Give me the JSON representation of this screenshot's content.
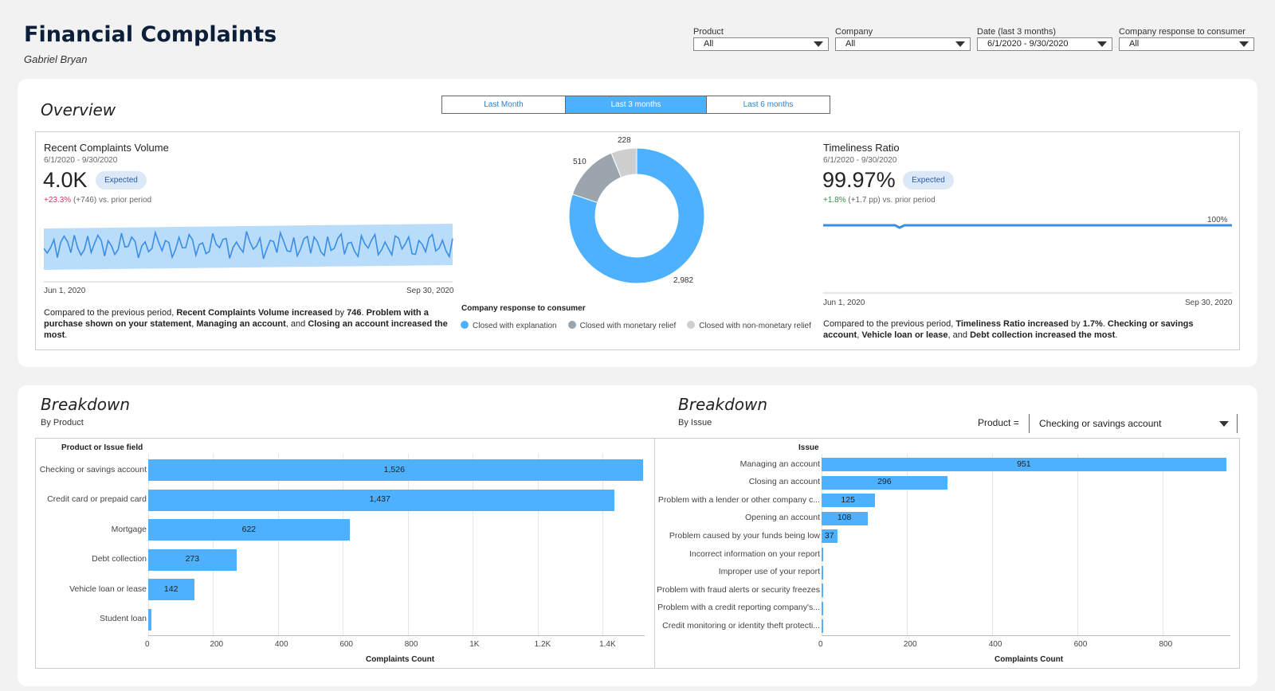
{
  "header": {
    "title": "Financial Complaints",
    "author": "Gabriel Bryan"
  },
  "filters": [
    {
      "label": "Product",
      "value": "All"
    },
    {
      "label": "Company",
      "value": "All"
    },
    {
      "label": "Date (last 3 months)",
      "value": "6/1/2020 - 9/30/2020"
    },
    {
      "label": "Company response to consumer",
      "value": "All"
    }
  ],
  "overview": {
    "title": "Overview",
    "tabs": [
      {
        "label": "Last Month",
        "active": false
      },
      {
        "label": "Last 3 months",
        "active": true
      },
      {
        "label": "Last 6 months",
        "active": false
      }
    ],
    "volume": {
      "title": "Recent Complaints Volume",
      "date_range": "6/1/2020 - 9/30/2020",
      "value": "4.0K",
      "badge": "Expected",
      "delta_pct": "+23.3%",
      "delta_rest": " (+746) vs. prior period",
      "x_start": "Jun 1, 2020",
      "x_end": "Sep 30, 2020",
      "narr_1": "Compared to the previous period, ",
      "narr_2": "Recent Complaints Volume increased",
      "narr_3": " by ",
      "narr_4": "746",
      "narr_5": ". ",
      "narr_6": "Problem with a purchase shown on your statement",
      "narr_7": ", ",
      "narr_8": "Managing an account",
      "narr_9": ", and ",
      "narr_10": "Closing an account increased the most",
      "narr_11": "."
    },
    "response": {
      "legend_title": "Company response to consumer",
      "colors": {
        "explanation": "#4db1ff",
        "monetary": "#9aa5ad",
        "nonmonetary": "#cfcfcf"
      },
      "slices": [
        {
          "label": "Closed with explanation",
          "value": 2982,
          "display": "2,982"
        },
        {
          "label": "Closed with monetary relief",
          "value": 510,
          "display": "510"
        },
        {
          "label": "Closed with non-monetary relief",
          "value": 228,
          "display": "228"
        }
      ]
    },
    "timeliness": {
      "title": "Timeliness Ratio",
      "date_range": "6/1/2020 - 9/30/2020",
      "value": "99.97%",
      "badge": "Expected",
      "delta_pct": "+1.8%",
      "delta_rest": " (+1.7 pp) vs. prior period",
      "line_label": "100%",
      "x_start": "Jun 1, 2020",
      "x_end": "Sep 30, 2020",
      "narr_1": "Compared to the previous period, ",
      "narr_2": "Timeliness Ratio increased",
      "narr_3": " by ",
      "narr_4": "1.7%",
      "narr_5": ". ",
      "narr_6": "Checking or savings account",
      "narr_7": ", ",
      "narr_8": "Vehicle loan or lease",
      "narr_9": ", and ",
      "narr_10": "Debt collection increased the most",
      "narr_11": "."
    }
  },
  "breakdown_product": {
    "title": "Breakdown",
    "subtitle": "By Product",
    "col_head": "Product or Issue field",
    "x_title": "Complaints Count",
    "ticks": [
      "0",
      "200",
      "400",
      "600",
      "800",
      "1K",
      "1.2K",
      "1.4K"
    ],
    "chart_data": {
      "type": "bar",
      "categories": [
        "Checking or savings account",
        "Credit card or prepaid card",
        "Mortgage",
        "Debt collection",
        "Vehicle loan or lease",
        "Student loan"
      ],
      "values": [
        1526,
        1437,
        622,
        273,
        142,
        10
      ],
      "labels": [
        "1,526",
        "1,437",
        "622",
        "273",
        "142",
        ""
      ],
      "xlabel": "Complaints Count",
      "xlim": [
        0,
        1530
      ]
    }
  },
  "breakdown_issue": {
    "title": "Breakdown",
    "subtitle": "By Issue",
    "filter_label": "Product =",
    "filter_value": "Checking or savings account",
    "col_head": "Issue",
    "x_title": "Complaints Count",
    "ticks": [
      "0",
      "200",
      "400",
      "600",
      "800"
    ],
    "chart_data": {
      "type": "bar",
      "categories": [
        "Managing an account",
        "Closing an account",
        "Problem with a lender or other company c...",
        "Opening an account",
        "Problem caused by your funds being low",
        "Incorrect information on your report",
        "Improper use of your report",
        "Problem with fraud alerts or security freezes",
        "Problem with a credit reporting company's...",
        "Credit monitoring or identity theft protecti..."
      ],
      "values": [
        951,
        296,
        125,
        108,
        37,
        3,
        2,
        1,
        1,
        1
      ],
      "labels": [
        "951",
        "296",
        "125",
        "108",
        "37",
        "",
        "",
        "",
        "",
        ""
      ],
      "xlabel": "Complaints Count",
      "xlim": [
        0,
        960
      ]
    }
  }
}
